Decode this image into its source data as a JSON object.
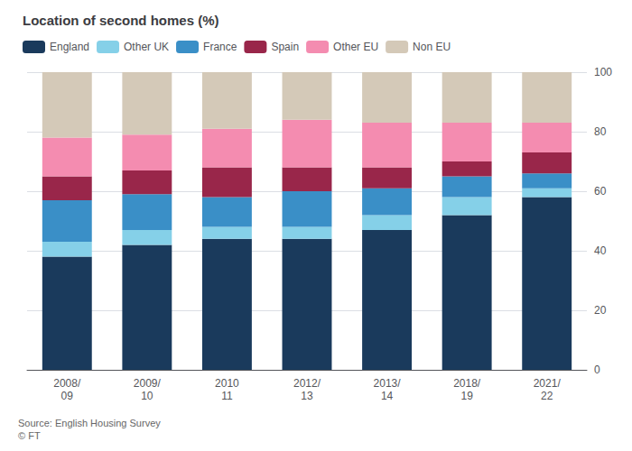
{
  "chart_data": {
    "type": "bar",
    "title": "Location of second homes (%)",
    "categories": [
      "2008/\n09",
      "2009/\n10",
      "2010\n11",
      "2012/\n13",
      "2013/\n14",
      "2018/\n19",
      "2021/\n22"
    ],
    "series": [
      {
        "name": "England",
        "color": "#1a3a5c",
        "values": [
          38,
          42,
          44,
          44,
          47,
          52,
          58
        ]
      },
      {
        "name": "Other UK",
        "color": "#85d0e8",
        "values": [
          5,
          5,
          4,
          4,
          5,
          6,
          3
        ]
      },
      {
        "name": "France",
        "color": "#3a8fc7",
        "values": [
          14,
          12,
          10,
          12,
          9,
          7,
          5
        ]
      },
      {
        "name": "Spain",
        "color": "#99264a",
        "values": [
          8,
          8,
          10,
          8,
          7,
          5,
          7
        ]
      },
      {
        "name": "Other EU",
        "color": "#f48cb0",
        "values": [
          13,
          12,
          13,
          16,
          15,
          13,
          10
        ]
      },
      {
        "name": "Non EU",
        "color": "#d4c9b8",
        "values": [
          22,
          21,
          19,
          16,
          17,
          17,
          17
        ]
      }
    ],
    "stacked": true,
    "ylim": [
      0,
      100
    ],
    "yticks": [
      0,
      20,
      40,
      60,
      80,
      100
    ],
    "grid": true,
    "legend": "upper left",
    "annotations": [
      "Source: English Housing Survey\n© FT"
    ]
  }
}
